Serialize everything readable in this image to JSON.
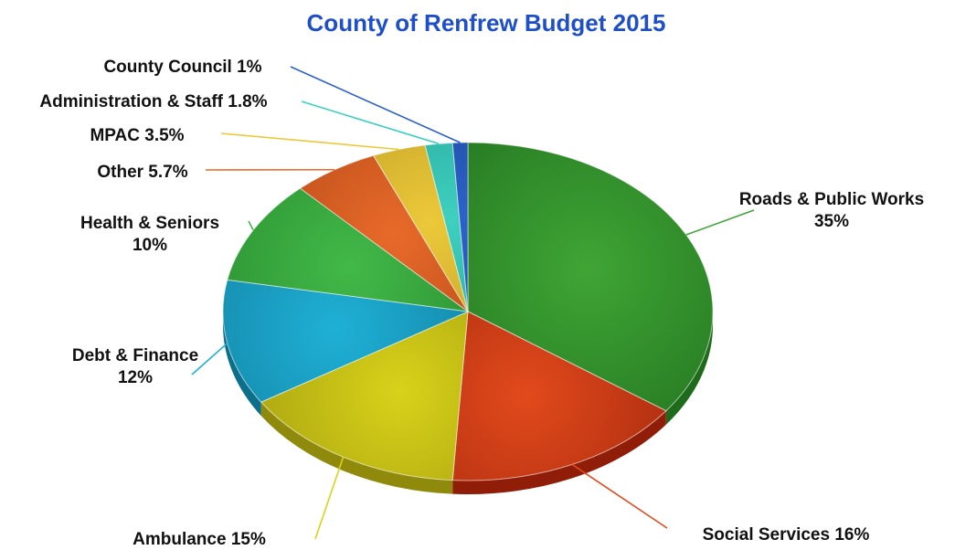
{
  "chart_data": {
    "type": "pie",
    "title": "County of Renfrew Budget 2015",
    "title_color": "#1f4fc8",
    "slices": [
      {
        "name": "Roads & Public Works",
        "label_lines": [
          "Roads & Public Works",
          "35%"
        ],
        "value": 35,
        "color": "#3fa535",
        "dark": "#1e6b1c"
      },
      {
        "name": "Social Services",
        "label_lines": [
          "Social Services 16%"
        ],
        "value": 16,
        "color": "#e24a1c",
        "dark": "#8f1d08"
      },
      {
        "name": "Ambulance",
        "label_lines": [
          "Ambulance 15%"
        ],
        "value": 15,
        "color": "#d9d21a",
        "dark": "#8f8a0c"
      },
      {
        "name": "Debt & Finance",
        "label_lines": [
          "Debt & Finance",
          "12%"
        ],
        "value": 12,
        "color": "#1fb0d6",
        "dark": "#0d6f8c"
      },
      {
        "name": "Health & Seniors",
        "label_lines": [
          "Health & Seniors",
          "10%"
        ],
        "value": 10,
        "color": "#42b948",
        "dark": "#1f7a26"
      },
      {
        "name": "Other",
        "label_lines": [
          "Other 5.7%"
        ],
        "value": 5.7,
        "color": "#e86a2a",
        "dark": "#9c3a0f"
      },
      {
        "name": "MPAC",
        "label_lines": [
          "MPAC 3.5%"
        ],
        "value": 3.5,
        "color": "#ecc93a",
        "dark": "#a5861a"
      },
      {
        "name": "Administration & Staff",
        "label_lines": [
          "Administration & Staff 1.8%"
        ],
        "value": 1.8,
        "color": "#3ed0c0",
        "dark": "#1a8a7e"
      },
      {
        "name": "County Council",
        "label_lines": [
          "County Council 1%"
        ],
        "value": 1,
        "color": "#2c62c9",
        "dark": "#153a80"
      }
    ]
  }
}
